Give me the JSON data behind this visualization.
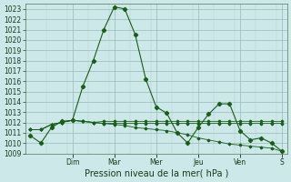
{
  "xlabel": "Pression niveau de la mer( hPa )",
  "bg_color": "#cce8e8",
  "grid_color": "#bbcccc",
  "grid_color_major": "#99bbbb",
  "line_color": "#1a5c1a",
  "ylim": [
    1009,
    1023.5
  ],
  "yticks": [
    1009,
    1010,
    1011,
    1012,
    1013,
    1014,
    1015,
    1016,
    1017,
    1018,
    1019,
    1020,
    1021,
    1022,
    1023
  ],
  "day_labels": [
    "Dim",
    "Mar",
    "Mer",
    "Jeu",
    "Ven",
    "S"
  ],
  "series1": [
    1010.7,
    1010.0,
    1011.5,
    1012.1,
    1012.2,
    1015.5,
    1018.0,
    1021.0,
    1023.2,
    1023.0,
    1020.5,
    1016.2,
    1013.5,
    1012.9,
    1011.0,
    1010.0,
    1011.5,
    1012.8,
    1013.8,
    1013.8,
    1011.2,
    1010.3,
    1010.5,
    1010.0,
    1009.2
  ],
  "series2": [
    1011.3,
    1011.3,
    1011.8,
    1012.0,
    1012.2,
    1012.1,
    1012.0,
    1011.9,
    1011.8,
    1011.7,
    1011.5,
    1011.4,
    1011.3,
    1011.2,
    1011.0,
    1010.8,
    1010.5,
    1010.3,
    1010.1,
    1009.9,
    1009.8,
    1009.7,
    1009.6,
    1009.5,
    1009.2
  ],
  "series3": [
    1011.3,
    1011.3,
    1011.8,
    1012.0,
    1012.2,
    1012.1,
    1012.0,
    1011.9,
    1011.9,
    1011.9,
    1011.9,
    1011.9,
    1011.9,
    1011.9,
    1011.9,
    1011.9,
    1011.9,
    1011.9,
    1011.9,
    1011.9,
    1011.9,
    1011.9,
    1011.9,
    1011.9,
    1011.9
  ],
  "series4": [
    1011.3,
    1011.3,
    1011.8,
    1012.0,
    1012.2,
    1012.1,
    1012.0,
    1012.1,
    1012.1,
    1012.1,
    1012.1,
    1012.1,
    1012.1,
    1012.1,
    1012.1,
    1012.1,
    1012.1,
    1012.1,
    1012.1,
    1012.1,
    1012.1,
    1012.1,
    1012.1,
    1012.1,
    1012.1
  ],
  "n_points": 25,
  "xlim": [
    0,
    24
  ],
  "xlabel_fontsize": 7,
  "ylabel_fontsize": 5.5,
  "tick_fontsize": 5.5
}
